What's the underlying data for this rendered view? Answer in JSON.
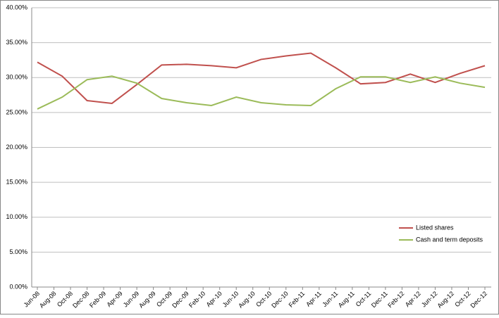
{
  "chart_data": {
    "type": "line",
    "x": [
      "2008-06",
      "2008-09",
      "2008-12",
      "2009-03",
      "2009-06",
      "2009-09",
      "2009-12",
      "2010-03",
      "2010-06",
      "2010-09",
      "2010-12",
      "2011-03",
      "2011-06",
      "2011-09",
      "2011-12",
      "2012-03",
      "2012-06",
      "2012-09",
      "2012-12"
    ],
    "xlim": [
      "2008-06",
      "2012-12"
    ],
    "xticks": [
      {
        "value": "2008-06",
        "label": "Jun-08"
      },
      {
        "value": "2008-08",
        "label": "Aug-08"
      },
      {
        "value": "2008-10",
        "label": "Oct-08"
      },
      {
        "value": "2008-12",
        "label": "Dec-08"
      },
      {
        "value": "2009-02",
        "label": "Feb-09"
      },
      {
        "value": "2009-04",
        "label": "Apr-09"
      },
      {
        "value": "2009-06",
        "label": "Jun-09"
      },
      {
        "value": "2009-08",
        "label": "Aug-09"
      },
      {
        "value": "2009-10",
        "label": "Oct-09"
      },
      {
        "value": "2009-12",
        "label": "Dec-09"
      },
      {
        "value": "2010-02",
        "label": "Feb-10"
      },
      {
        "value": "2010-04",
        "label": "Apr-10"
      },
      {
        "value": "2010-06",
        "label": "Jun-10"
      },
      {
        "value": "2010-08",
        "label": "Aug-10"
      },
      {
        "value": "2010-10",
        "label": "Oct-10"
      },
      {
        "value": "2010-12",
        "label": "Dec-10"
      },
      {
        "value": "2011-02",
        "label": "Feb-11"
      },
      {
        "value": "2011-04",
        "label": "Apr-11"
      },
      {
        "value": "2011-06",
        "label": "Jun-11"
      },
      {
        "value": "2011-08",
        "label": "Aug-11"
      },
      {
        "value": "2011-10",
        "label": "Oct-11"
      },
      {
        "value": "2011-12",
        "label": "Dec-11"
      },
      {
        "value": "2012-02",
        "label": "Feb-12"
      },
      {
        "value": "2012-04",
        "label": "Apr-12"
      },
      {
        "value": "2012-06",
        "label": "Jun-12"
      },
      {
        "value": "2012-08",
        "label": "Aug-12"
      },
      {
        "value": "2012-10",
        "label": "Oct-12"
      },
      {
        "value": "2012-12",
        "label": "Dec-12"
      }
    ],
    "ylim": [
      0,
      40
    ],
    "yticks": [
      {
        "value": 0,
        "label": "0.00%"
      },
      {
        "value": 5,
        "label": "5.00%"
      },
      {
        "value": 10,
        "label": "10.00%"
      },
      {
        "value": 15,
        "label": "15.00%"
      },
      {
        "value": 20,
        "label": "20.00%"
      },
      {
        "value": 25,
        "label": "25.00%"
      },
      {
        "value": 30,
        "label": "30.00%"
      },
      {
        "value": 35,
        "label": "35.00%"
      },
      {
        "value": 40,
        "label": "40.00%"
      }
    ],
    "grid": true,
    "legend": "lower right",
    "series": [
      {
        "name": "Listed shares",
        "color": "#c0504d",
        "values": [
          32.2,
          30.2,
          26.7,
          26.3,
          29.0,
          31.8,
          31.9,
          31.7,
          31.4,
          32.6,
          33.1,
          33.5,
          31.4,
          29.1,
          29.3,
          30.5,
          29.3,
          30.6,
          31.7
        ]
      },
      {
        "name": "Cash and term deposits",
        "color": "#9bbb59",
        "values": [
          25.5,
          27.2,
          29.7,
          30.2,
          29.2,
          27.0,
          26.4,
          26.0,
          27.2,
          26.4,
          26.1,
          26.0,
          28.4,
          30.1,
          30.1,
          29.3,
          30.1,
          29.2,
          28.6
        ]
      }
    ]
  }
}
